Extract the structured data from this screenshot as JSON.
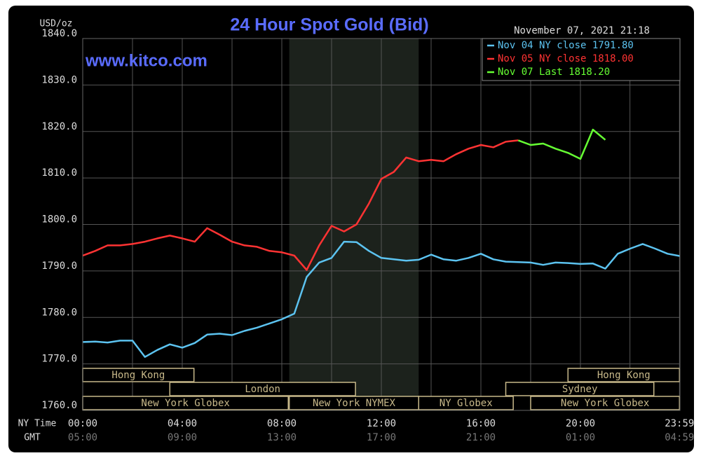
{
  "chart_data": {
    "type": "line",
    "title": "24 Hour Spot Gold (Bid)",
    "timestamp": "November 07, 2021 21:18",
    "watermark": "www.kitco.com",
    "y_label": "USD/oz",
    "x_label": "NY Time",
    "x2_label": "GMT",
    "x": [
      0,
      0.5,
      1,
      1.5,
      2,
      2.5,
      3,
      3.5,
      4,
      4.5,
      5,
      5.5,
      6,
      6.5,
      7,
      7.5,
      8,
      8.5,
      9,
      9.5,
      10,
      10.5,
      11,
      11.5,
      12,
      12.5,
      13,
      13.5,
      14,
      14.5,
      15,
      15.5,
      16,
      16.5,
      17,
      17.5,
      18,
      18.5,
      19,
      19.5,
      20,
      20.5,
      21,
      21.5,
      22,
      22.5,
      23,
      23.5,
      24
    ],
    "xlim": [
      0,
      24
    ],
    "xticks": [
      {
        "value": 0,
        "label": "00:00"
      },
      {
        "value": 4,
        "label": "04:00"
      },
      {
        "value": 8,
        "label": "08:00"
      },
      {
        "value": 12,
        "label": "12:00"
      },
      {
        "value": 16,
        "label": "16:00"
      },
      {
        "value": 20,
        "label": "20:00"
      },
      {
        "value": 23.98,
        "label": "23:59"
      }
    ],
    "x2ticks": [
      "05:00",
      "09:00",
      "13:00",
      "17:00",
      "21:00",
      "01:00",
      "04:59"
    ],
    "ylim": [
      1760,
      1840
    ],
    "yticks": [
      {
        "value": 1760,
        "label": "1760.0"
      },
      {
        "value": 1770,
        "label": "1770.0"
      },
      {
        "value": 1780,
        "label": "1780.0"
      },
      {
        "value": 1790,
        "label": "1790.0"
      },
      {
        "value": 1800,
        "label": "1800.0"
      },
      {
        "value": 1810,
        "label": "1810.0"
      },
      {
        "value": 1820,
        "label": "1820.0"
      },
      {
        "value": 1830,
        "label": "1830.0"
      },
      {
        "value": 1840,
        "label": "1840.0"
      }
    ],
    "grid": true,
    "legend": "top-right",
    "series": [
      {
        "name": "Nov 04 NY close 1791.80",
        "color": "#5cc3f0",
        "values": [
          1774.7,
          1774.8,
          1774.6,
          1775,
          1775,
          1771.5,
          1773,
          1774.2,
          1773.5,
          1774.5,
          1776.3,
          1776.5,
          1776.2,
          1777.1,
          1777.8,
          1778.7,
          1779.6,
          1780.8,
          1788.7,
          1791.8,
          1792.8,
          1796.3,
          1796.2,
          1794.3,
          1792.8,
          1792.5,
          1792.2,
          1792.4,
          1793.5,
          1792.5,
          1792.2,
          1792.8,
          1793.7,
          1792.5,
          1792,
          1791.9,
          1791.8,
          1791.3,
          1791.8,
          1791.7,
          1791.5,
          1791.6,
          1790.5,
          1793.7,
          1794.8,
          1795.8,
          1794.8,
          1793.7,
          1793.2
        ]
      },
      {
        "name": "Nov 05 NY close 1818.00",
        "color": "#ff3333",
        "values": [
          1793.3,
          1794.3,
          1795.5,
          1795.5,
          1795.8,
          1796.3,
          1797,
          1797.6,
          1797,
          1796.3,
          1799.2,
          1797.8,
          1796.3,
          1795.5,
          1795.2,
          1794.3,
          1794,
          1793.3,
          1790.2,
          1795.5,
          1799.7,
          1798.5,
          1800,
          1804.5,
          1809.8,
          1811.3,
          1814.4,
          1813.6,
          1813.9,
          1813.6,
          1815.1,
          1816.3,
          1817.1,
          1816.6,
          1817.8,
          1818.1,
          null,
          null,
          null,
          null,
          null,
          null,
          null,
          null,
          null,
          null,
          null,
          null,
          null
        ]
      },
      {
        "name": "Nov 07 Last 1818.20",
        "color": "#66ff33",
        "values": [
          null,
          null,
          null,
          null,
          null,
          null,
          null,
          null,
          null,
          null,
          null,
          null,
          null,
          null,
          null,
          null,
          null,
          null,
          null,
          null,
          null,
          null,
          null,
          null,
          null,
          null,
          null,
          null,
          null,
          null,
          null,
          null,
          null,
          null,
          null,
          1818.1,
          1817.1,
          1817.4,
          1816.3,
          1815.4,
          1814.1,
          1820.4,
          1818.2,
          null,
          null,
          null,
          null,
          null,
          null
        ]
      }
    ],
    "sessions": [
      [
        {
          "label": "Hong Kong",
          "start": 0,
          "end": 4.47
        },
        {
          "label": "Hong Kong",
          "start": 19.5,
          "end": 23.98
        }
      ],
      [
        {
          "label": "London",
          "start": 3.5,
          "end": 10.96
        },
        {
          "label": "Sydney",
          "start": 17,
          "end": 22.95
        }
      ],
      [
        {
          "label": "New York Globex",
          "start": 0,
          "end": 8.26
        },
        {
          "label": "New York NYMEX",
          "start": 8.3,
          "end": 13.5
        },
        {
          "label": "NY Globex",
          "start": 13.5,
          "end": 17.3
        },
        {
          "label": "New York Globex",
          "start": 18,
          "end": 23.98
        }
      ]
    ]
  }
}
